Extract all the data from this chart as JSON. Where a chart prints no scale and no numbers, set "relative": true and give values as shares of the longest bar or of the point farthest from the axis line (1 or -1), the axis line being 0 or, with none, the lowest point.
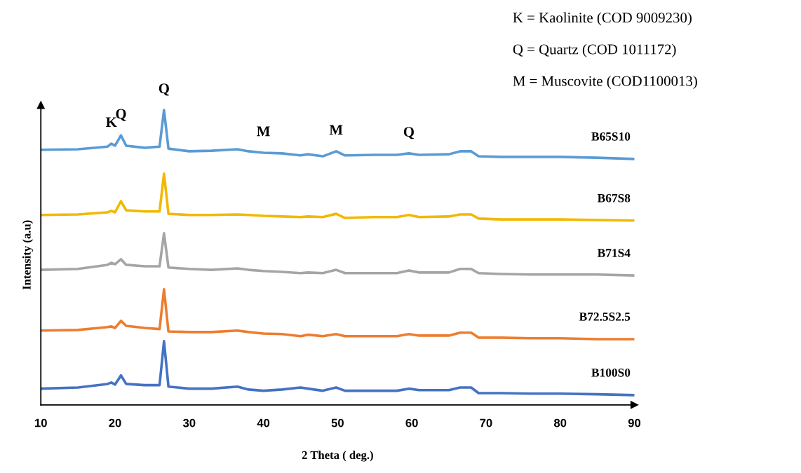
{
  "chart_data": {
    "type": "line",
    "relative": true,
    "xlabel": "2 Theta ( deg.)",
    "ylabel": "Intensity (a.u)",
    "xlim": [
      10,
      90
    ],
    "xticks": [
      10,
      20,
      30,
      40,
      50,
      60,
      70,
      80,
      90
    ],
    "tick_labels": "x",
    "line_style": "solid",
    "x": [
      10,
      15,
      19,
      19.5,
      20,
      20.8,
      21.5,
      24,
      26,
      26.6,
      27.2,
      30,
      33,
      36.5,
      38,
      40,
      42.5,
      45,
      46,
      48,
      49.8,
      51,
      55,
      58,
      59.6,
      61,
      65,
      66.5,
      68,
      69,
      72,
      76,
      80,
      85,
      90
    ],
    "series": [
      {
        "name": "B65S10",
        "color": "#5b9bd5",
        "values": [
          0.865,
          0.867,
          0.876,
          0.886,
          0.879,
          0.914,
          0.879,
          0.872,
          0.876,
          1,
          0.869,
          0.86,
          0.862,
          0.867,
          0.86,
          0.855,
          0.853,
          0.846,
          0.85,
          0.843,
          0.86,
          0.846,
          0.848,
          0.848,
          0.853,
          0.848,
          0.85,
          0.86,
          0.86,
          0.843,
          0.841,
          0.841,
          0.841,
          0.838,
          0.834
        ]
      },
      {
        "name": "B67S8",
        "color": "#f2b800",
        "values": [
          0.644,
          0.646,
          0.653,
          0.658,
          0.653,
          0.691,
          0.66,
          0.656,
          0.656,
          0.784,
          0.648,
          0.644,
          0.644,
          0.646,
          0.644,
          0.641,
          0.639,
          0.637,
          0.639,
          0.637,
          0.648,
          0.634,
          0.637,
          0.637,
          0.644,
          0.637,
          0.639,
          0.646,
          0.646,
          0.632,
          0.629,
          0.629,
          0.629,
          0.627,
          0.625
        ]
      },
      {
        "name": "B71S4",
        "color": "#a5a5a5",
        "values": [
          0.458,
          0.461,
          0.475,
          0.482,
          0.477,
          0.494,
          0.475,
          0.47,
          0.47,
          0.582,
          0.466,
          0.461,
          0.458,
          0.463,
          0.458,
          0.454,
          0.451,
          0.447,
          0.449,
          0.447,
          0.458,
          0.447,
          0.447,
          0.447,
          0.456,
          0.449,
          0.449,
          0.461,
          0.461,
          0.447,
          0.444,
          0.442,
          0.442,
          0.442,
          0.439
        ]
      },
      {
        "name": "B72.5S2.5",
        "color": "#ed7d31",
        "values": [
          0.252,
          0.254,
          0.264,
          0.266,
          0.261,
          0.285,
          0.268,
          0.261,
          0.257,
          0.392,
          0.249,
          0.247,
          0.247,
          0.252,
          0.247,
          0.242,
          0.24,
          0.233,
          0.238,
          0.233,
          0.24,
          0.233,
          0.233,
          0.233,
          0.24,
          0.235,
          0.235,
          0.245,
          0.245,
          0.228,
          0.228,
          0.226,
          0.226,
          0.223,
          0.223
        ]
      },
      {
        "name": "B100S0",
        "color": "#4472c4",
        "values": [
          0.055,
          0.059,
          0.071,
          0.076,
          0.069,
          0.1,
          0.071,
          0.067,
          0.067,
          0.216,
          0.062,
          0.055,
          0.055,
          0.062,
          0.052,
          0.048,
          0.052,
          0.059,
          0.055,
          0.048,
          0.059,
          0.048,
          0.048,
          0.048,
          0.055,
          0.05,
          0.05,
          0.059,
          0.059,
          0.04,
          0.04,
          0.038,
          0.038,
          0.036,
          0.033
        ]
      }
    ],
    "annotations": [
      {
        "text": "K",
        "x": 19.5,
        "y": 0.886
      },
      {
        "text": "Q",
        "x": 20.8,
        "y": 0.914
      },
      {
        "text": "Q",
        "x": 26.6,
        "y": 1
      },
      {
        "text": "M",
        "x": 40,
        "y": 0.855
      },
      {
        "text": "M",
        "x": 49.8,
        "y": 0.86
      },
      {
        "text": "Q",
        "x": 59.6,
        "y": 0.853
      },
      "K = Kaolinite (COD 9009230)",
      "Q = Quartz (COD 1011172)",
      "M = Muscovite (COD1100013)"
    ]
  }
}
